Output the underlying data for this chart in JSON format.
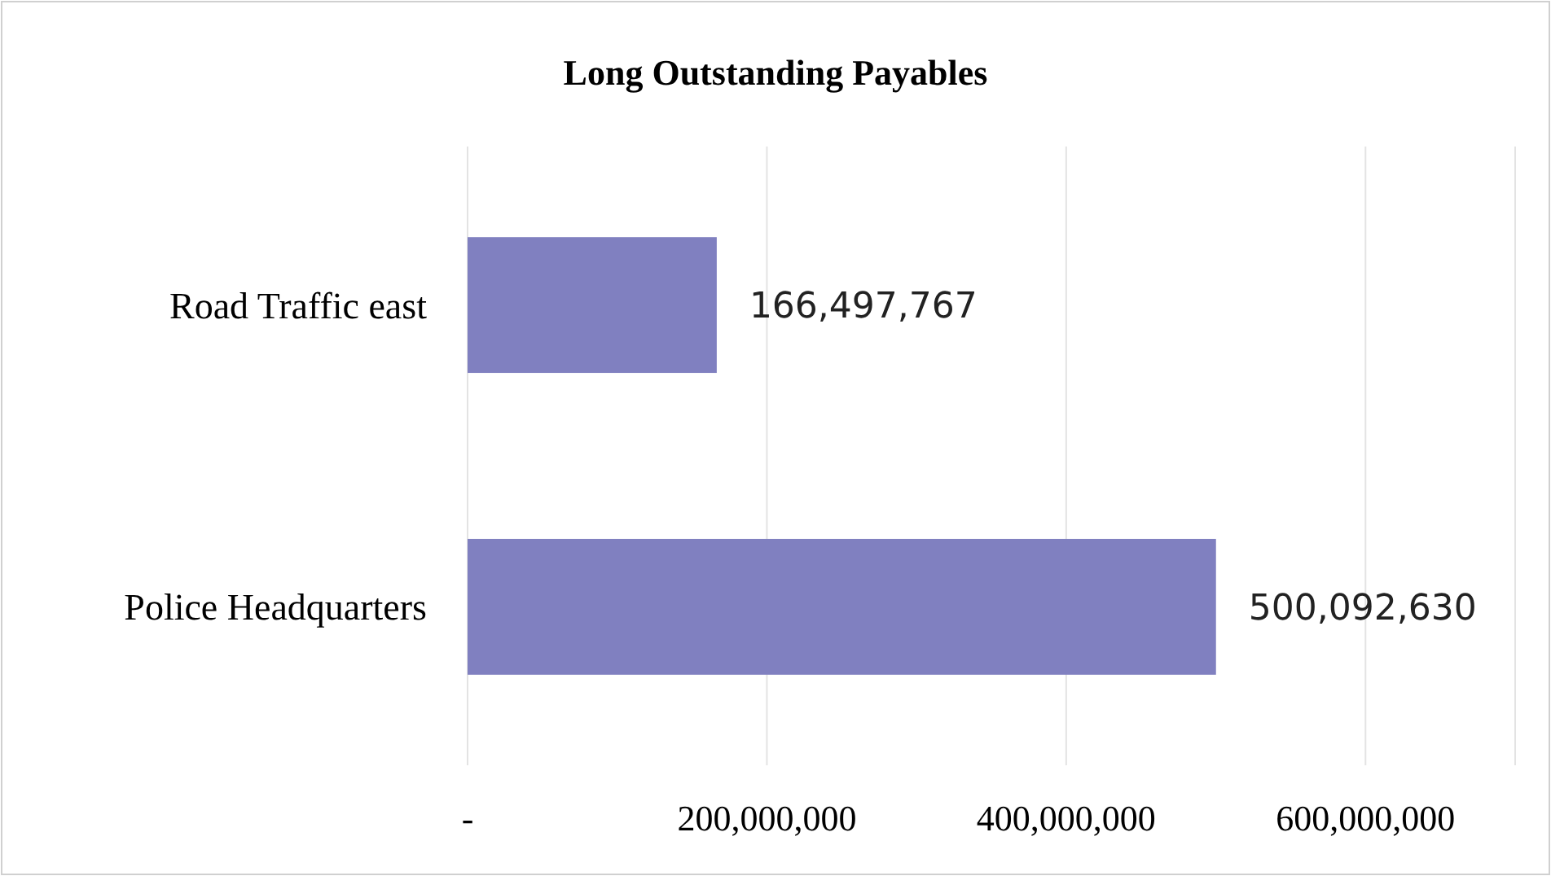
{
  "chart_data": {
    "type": "bar",
    "orientation": "horizontal",
    "title": "Long Outstanding Payables",
    "categories": [
      "Road Traffic east",
      "Police Headquarters"
    ],
    "values": [
      166497767,
      500092630
    ],
    "color": "#8080c0",
    "xlim": [
      0,
      700000000
    ],
    "xticks": [
      {
        "value": 0,
        "label": "-"
      },
      {
        "value": 200000000,
        "label": "200,000,000"
      },
      {
        "value": 400000000,
        "label": "400,000,000"
      },
      {
        "value": 600000000,
        "label": "600,000,000"
      }
    ],
    "grid": "x",
    "value_labels": [
      "166,497,767",
      "500,092,630"
    ]
  }
}
